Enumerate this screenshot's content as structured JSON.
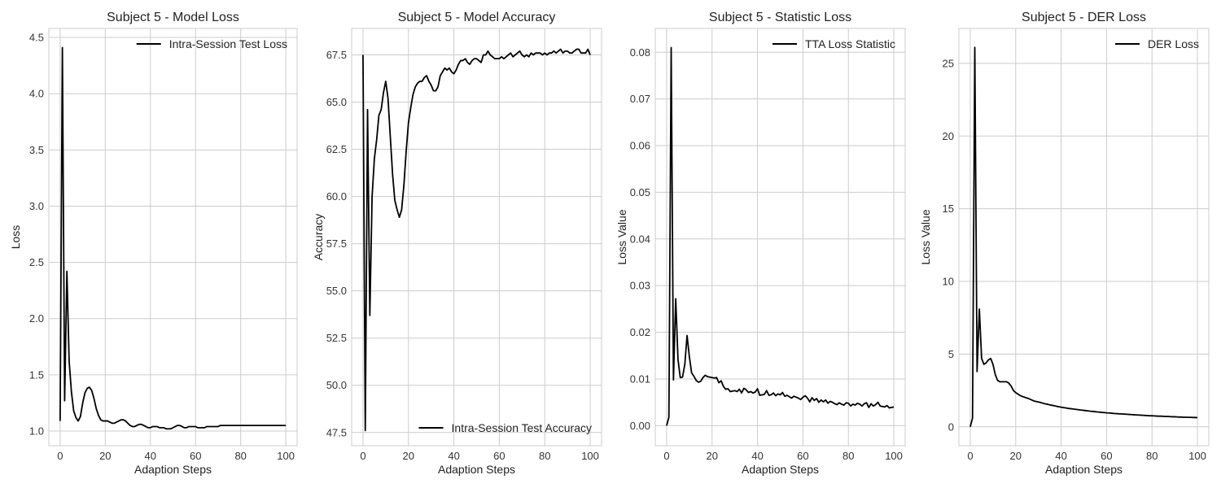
{
  "chart_data": [
    {
      "type": "line",
      "title": "Subject 5 - Model Loss",
      "xlabel": "Adaption Steps",
      "ylabel": "Loss",
      "xlim": [
        -5,
        105
      ],
      "ylim": [
        0.87,
        4.58
      ],
      "xticks": [
        0,
        20,
        40,
        60,
        80,
        100
      ],
      "yticks": [
        1.0,
        1.5,
        2.0,
        2.5,
        3.0,
        3.5,
        4.0,
        4.5
      ],
      "ytick_labels": [
        "1.0",
        "1.5",
        "2.0",
        "2.5",
        "3.0",
        "3.5",
        "4.0",
        "4.5"
      ],
      "grid": true,
      "legend_loc": "upper right",
      "series": [
        {
          "name": "Intra-Session Test Loss",
          "color": "#000000",
          "x": [
            0,
            1,
            2,
            3,
            4,
            5,
            6,
            7,
            8,
            9,
            10,
            11,
            12,
            13,
            14,
            15,
            16,
            17,
            18,
            19,
            20,
            21,
            22,
            23,
            24,
            25,
            26,
            27,
            28,
            29,
            30,
            31,
            32,
            33,
            34,
            35,
            36,
            37,
            38,
            39,
            40,
            41,
            42,
            43,
            44,
            45,
            46,
            47,
            48,
            49,
            50,
            51,
            52,
            53,
            54,
            55,
            56,
            57,
            58,
            59,
            60,
            61,
            62,
            63,
            64,
            65,
            66,
            67,
            68,
            69,
            70,
            71,
            72,
            73,
            74,
            75,
            76,
            77,
            78,
            79,
            80,
            81,
            82,
            83,
            84,
            85,
            86,
            87,
            88,
            89,
            90,
            91,
            92,
            93,
            94,
            95,
            96,
            97,
            98,
            99,
            100
          ],
          "y": [
            1.09,
            4.41,
            1.27,
            2.42,
            1.62,
            1.35,
            1.18,
            1.12,
            1.09,
            1.13,
            1.25,
            1.34,
            1.38,
            1.39,
            1.36,
            1.29,
            1.2,
            1.14,
            1.1,
            1.09,
            1.09,
            1.09,
            1.08,
            1.07,
            1.07,
            1.08,
            1.09,
            1.1,
            1.1,
            1.09,
            1.07,
            1.05,
            1.04,
            1.04,
            1.05,
            1.06,
            1.06,
            1.05,
            1.04,
            1.03,
            1.03,
            1.04,
            1.04,
            1.04,
            1.03,
            1.03,
            1.03,
            1.02,
            1.02,
            1.02,
            1.03,
            1.04,
            1.05,
            1.05,
            1.04,
            1.03,
            1.03,
            1.04,
            1.04,
            1.04,
            1.04,
            1.03,
            1.03,
            1.03,
            1.03,
            1.04,
            1.04,
            1.04,
            1.04,
            1.04,
            1.04,
            1.05,
            1.05,
            1.05,
            1.05,
            1.05,
            1.05,
            1.05,
            1.05,
            1.05,
            1.05,
            1.05,
            1.05,
            1.05,
            1.05,
            1.05,
            1.05,
            1.05,
            1.05,
            1.05,
            1.05,
            1.05,
            1.05,
            1.05,
            1.05,
            1.05,
            1.05,
            1.05,
            1.05,
            1.05,
            1.05
          ]
        }
      ]
    },
    {
      "type": "line",
      "title": "Subject 5 - Model Accuracy",
      "xlabel": "Adaption Steps",
      "ylabel": "Accuracy",
      "xlim": [
        -5,
        105
      ],
      "ylim": [
        46.8,
        68.9
      ],
      "xticks": [
        0,
        20,
        40,
        60,
        80,
        100
      ],
      "yticks": [
        47.5,
        50.0,
        52.5,
        55.0,
        57.5,
        60.0,
        62.5,
        65.0,
        67.5
      ],
      "ytick_labels": [
        "47.5",
        "50.0",
        "52.5",
        "55.0",
        "57.5",
        "60.0",
        "62.5",
        "65.0",
        "67.5"
      ],
      "grid": true,
      "legend_loc": "lower right",
      "series": [
        {
          "name": "Intra-Session Test Accuracy",
          "color": "#000000",
          "x": [
            0,
            1,
            2,
            3,
            4,
            5,
            6,
            7,
            8,
            9,
            10,
            11,
            12,
            13,
            14,
            15,
            16,
            17,
            18,
            19,
            20,
            21,
            22,
            23,
            24,
            25,
            26,
            27,
            28,
            29,
            30,
            31,
            32,
            33,
            34,
            35,
            36,
            37,
            38,
            39,
            40,
            41,
            42,
            43,
            44,
            45,
            46,
            47,
            48,
            49,
            50,
            51,
            52,
            53,
            54,
            55,
            56,
            57,
            58,
            59,
            60,
            61,
            62,
            63,
            64,
            65,
            66,
            67,
            68,
            69,
            70,
            71,
            72,
            73,
            74,
            75,
            76,
            77,
            78,
            79,
            80,
            81,
            82,
            83,
            84,
            85,
            86,
            87,
            88,
            89,
            90,
            91,
            92,
            93,
            94,
            95,
            96,
            97,
            98,
            99,
            100
          ],
          "y": [
            67.5,
            47.6,
            64.6,
            53.7,
            60.0,
            62.0,
            63.0,
            64.3,
            64.6,
            65.5,
            66.1,
            65.2,
            63.2,
            61.2,
            59.8,
            59.3,
            58.9,
            59.3,
            60.6,
            62.4,
            63.9,
            64.7,
            65.4,
            65.8,
            66.0,
            66.1,
            66.1,
            66.3,
            66.4,
            66.1,
            65.9,
            65.6,
            65.6,
            65.8,
            66.4,
            66.6,
            66.8,
            66.7,
            66.8,
            66.6,
            66.5,
            66.7,
            67.0,
            67.2,
            67.2,
            67.3,
            67.1,
            67.0,
            67.2,
            67.3,
            67.3,
            67.2,
            67.1,
            67.5,
            67.5,
            67.7,
            67.5,
            67.4,
            67.3,
            67.3,
            67.3,
            67.4,
            67.3,
            67.4,
            67.5,
            67.6,
            67.4,
            67.5,
            67.6,
            67.7,
            67.5,
            67.4,
            67.5,
            67.4,
            67.6,
            67.5,
            67.6,
            67.6,
            67.6,
            67.5,
            67.6,
            67.5,
            67.6,
            67.6,
            67.7,
            67.6,
            67.7,
            67.8,
            67.6,
            67.7,
            67.7,
            67.6,
            67.6,
            67.7,
            67.8,
            67.8,
            67.6,
            67.6,
            67.6,
            67.8,
            67.5
          ]
        }
      ]
    },
    {
      "type": "line",
      "title": "Subject 5 - Statistic Loss",
      "xlabel": "Adaption Steps",
      "ylabel": "Loss Value",
      "xlim": [
        -5,
        105
      ],
      "ylim": [
        -0.0043,
        0.0851
      ],
      "xticks": [
        0,
        20,
        40,
        60,
        80,
        100
      ],
      "yticks": [
        0.0,
        0.01,
        0.02,
        0.03,
        0.04,
        0.05,
        0.06,
        0.07,
        0.08
      ],
      "ytick_labels": [
        "0.00",
        "0.01",
        "0.02",
        "0.03",
        "0.04",
        "0.05",
        "0.06",
        "0.07",
        "0.08"
      ],
      "grid": true,
      "legend_loc": "upper right",
      "series": [
        {
          "name": "TTA Loss Statistic",
          "color": "#000000",
          "x": [
            0,
            1,
            2,
            3,
            4,
            5,
            6,
            7,
            8,
            9,
            10,
            11,
            12,
            13,
            14,
            15,
            16,
            17,
            18,
            19,
            20,
            21,
            22,
            23,
            24,
            25,
            26,
            27,
            28,
            29,
            30,
            31,
            32,
            33,
            34,
            35,
            36,
            37,
            38,
            39,
            40,
            41,
            42,
            43,
            44,
            45,
            46,
            47,
            48,
            49,
            50,
            51,
            52,
            53,
            54,
            55,
            56,
            57,
            58,
            59,
            60,
            61,
            62,
            63,
            64,
            65,
            66,
            67,
            68,
            69,
            70,
            71,
            72,
            73,
            74,
            75,
            76,
            77,
            78,
            79,
            80,
            81,
            82,
            83,
            84,
            85,
            86,
            87,
            88,
            89,
            90,
            91,
            92,
            93,
            94,
            95,
            96,
            97,
            98,
            99,
            100
          ],
          "y": [
            0.0,
            0.0018,
            0.081,
            0.0098,
            0.0272,
            0.0142,
            0.0103,
            0.0104,
            0.0131,
            0.0193,
            0.0148,
            0.0113,
            0.0106,
            0.0097,
            0.0093,
            0.0095,
            0.0103,
            0.0108,
            0.0105,
            0.0104,
            0.0103,
            0.0102,
            0.0103,
            0.0092,
            0.0096,
            0.0084,
            0.0078,
            0.0079,
            0.0073,
            0.0074,
            0.0075,
            0.0073,
            0.0078,
            0.007,
            0.008,
            0.0077,
            0.0071,
            0.0073,
            0.007,
            0.0072,
            0.0079,
            0.0065,
            0.0066,
            0.0067,
            0.0075,
            0.0065,
            0.0066,
            0.007,
            0.0064,
            0.0068,
            0.0066,
            0.0071,
            0.0063,
            0.0065,
            0.0062,
            0.0059,
            0.0063,
            0.0061,
            0.0059,
            0.0056,
            0.0061,
            0.0064,
            0.0059,
            0.0051,
            0.006,
            0.0054,
            0.0058,
            0.005,
            0.0055,
            0.0051,
            0.0055,
            0.0048,
            0.0052,
            0.005,
            0.0047,
            0.0045,
            0.0049,
            0.0046,
            0.0044,
            0.0049,
            0.0048,
            0.0042,
            0.0046,
            0.0044,
            0.0048,
            0.0046,
            0.0042,
            0.0047,
            0.0049,
            0.0039,
            0.0047,
            0.0042,
            0.0045,
            0.005,
            0.0042,
            0.0041,
            0.004,
            0.0043,
            0.0038,
            0.0039,
            0.004
          ]
        }
      ]
    },
    {
      "type": "line",
      "title": "Subject 5 - DER Loss",
      "xlabel": "Adaption Steps",
      "ylabel": "Loss Value",
      "xlim": [
        -5,
        105
      ],
      "ylim": [
        -1.3,
        27.4
      ],
      "xticks": [
        0,
        20,
        40,
        60,
        80,
        100
      ],
      "yticks": [
        0,
        5,
        10,
        15,
        20,
        25
      ],
      "ytick_labels": [
        "0",
        "5",
        "10",
        "15",
        "20",
        "25"
      ],
      "grid": true,
      "legend_loc": "upper right",
      "series": [
        {
          "name": "DER Loss",
          "color": "#000000",
          "x": [
            0,
            1,
            2,
            3,
            4,
            5,
            6,
            7,
            8,
            9,
            10,
            11,
            12,
            13,
            14,
            15,
            16,
            17,
            18,
            19,
            20,
            21,
            22,
            23,
            24,
            25,
            26,
            27,
            28,
            29,
            30,
            31,
            32,
            33,
            34,
            35,
            36,
            37,
            38,
            39,
            40,
            41,
            42,
            43,
            44,
            45,
            46,
            47,
            48,
            49,
            50,
            51,
            52,
            53,
            54,
            55,
            56,
            57,
            58,
            59,
            60,
            61,
            62,
            63,
            64,
            65,
            66,
            67,
            68,
            69,
            70,
            71,
            72,
            73,
            74,
            75,
            76,
            77,
            78,
            79,
            80,
            81,
            82,
            83,
            84,
            85,
            86,
            87,
            88,
            89,
            90,
            91,
            92,
            93,
            94,
            95,
            96,
            97,
            98,
            99,
            100
          ],
          "y": [
            0.0,
            0.6,
            26.1,
            3.8,
            8.1,
            4.7,
            4.3,
            4.4,
            4.6,
            4.7,
            4.3,
            3.6,
            3.2,
            3.1,
            3.1,
            3.1,
            3.1,
            3.0,
            2.8,
            2.5,
            2.35,
            2.25,
            2.15,
            2.08,
            2.03,
            1.98,
            1.92,
            1.85,
            1.78,
            1.74,
            1.71,
            1.67,
            1.62,
            1.58,
            1.55,
            1.51,
            1.48,
            1.45,
            1.41,
            1.38,
            1.35,
            1.32,
            1.3,
            1.27,
            1.25,
            1.23,
            1.21,
            1.19,
            1.17,
            1.15,
            1.13,
            1.11,
            1.09,
            1.07,
            1.06,
            1.04,
            1.02,
            1.01,
            0.99,
            0.98,
            0.96,
            0.95,
            0.94,
            0.92,
            0.91,
            0.9,
            0.89,
            0.88,
            0.87,
            0.86,
            0.85,
            0.84,
            0.83,
            0.82,
            0.81,
            0.8,
            0.79,
            0.78,
            0.77,
            0.76,
            0.76,
            0.75,
            0.74,
            0.73,
            0.73,
            0.72,
            0.71,
            0.71,
            0.7,
            0.69,
            0.69,
            0.68,
            0.67,
            0.67,
            0.66,
            0.66,
            0.65,
            0.65,
            0.64,
            0.64,
            0.63
          ]
        }
      ]
    }
  ]
}
